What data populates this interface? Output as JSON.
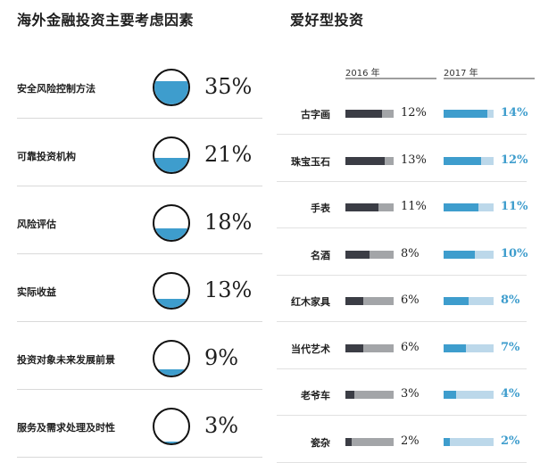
{
  "left_title": "海外金融投资主要考虑因素",
  "right_title": "爱好型投资",
  "factors": [
    {
      "label": "安全风险控制方法",
      "value": 35,
      "display": "35%"
    },
    {
      "label": "可靠投资机构",
      "value": 21,
      "display": "21%"
    },
    {
      "label": "风险评估",
      "value": 18,
      "display": "18%"
    },
    {
      "label": "实际收益",
      "value": 13,
      "display": "13%"
    },
    {
      "label": "投资对象未来发展前景",
      "value": 9,
      "display": "9%"
    },
    {
      "label": "服务及需求处理及时性",
      "value": 3,
      "display": "3%"
    }
  ],
  "years": [
    "2016 年",
    "2017 年"
  ],
  "colors": {
    "y2016": "#3b3d45",
    "y2016_track": "#a3a5a8",
    "y2017": "#3e9dcd",
    "y2017_track": "#bcd8ea",
    "fill": "#3e9dcd"
  },
  "chart_data": [
    {
      "type": "bar",
      "title": "海外金融投资主要考虑因素",
      "categories": [
        "安全风险控制方法",
        "可靠投资机构",
        "风险评估",
        "实际收益",
        "投资对象未来发展前景",
        "服务及需求处理及时性"
      ],
      "values": [
        35,
        21,
        18,
        13,
        9,
        3
      ]
    },
    {
      "type": "bar",
      "title": "爱好型投资",
      "categories": [
        "古字画",
        "珠宝玉石",
        "手表",
        "名酒",
        "红木家具",
        "当代艺术",
        "老爷车",
        "瓷杂"
      ],
      "series": [
        {
          "name": "2016 年",
          "values": [
            12,
            13,
            11,
            8,
            6,
            6,
            3,
            2
          ],
          "labels": [
            "12%",
            "13%",
            "11%",
            "8%",
            "6%",
            "6%",
            "3%",
            "2%"
          ]
        },
        {
          "name": "2017 年",
          "values": [
            14,
            12,
            11,
            10,
            8,
            7,
            4,
            2
          ],
          "labels": [
            "14%",
            "12%",
            "11%",
            "10%",
            "8%",
            "7%",
            "4%",
            "2%"
          ]
        }
      ]
    }
  ]
}
